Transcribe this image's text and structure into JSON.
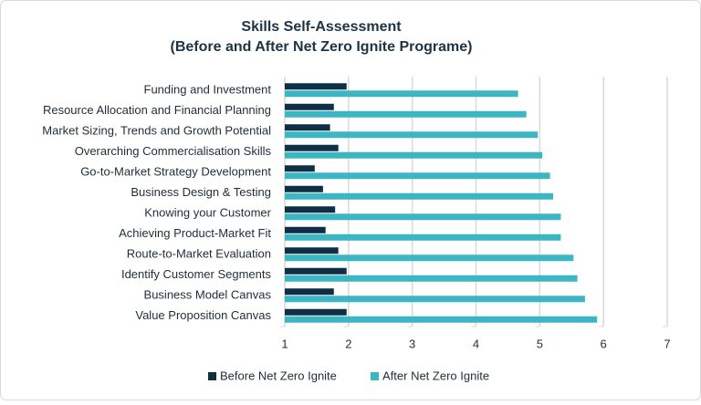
{
  "chart_data": {
    "type": "hbar",
    "title": [
      "Skills Self-Assessment",
      "(Before and After Net Zero Ignite Programe)"
    ],
    "categories": [
      "Funding and Investment",
      "Resource Allocation and Financial Planning",
      "Market Sizing, Trends and Growth Potential",
      "Overarching Commercialisation Skills",
      "Go-to-Market Strategy Development",
      "Business Design & Testing",
      "Knowing your Customer",
      "Achieving Product-Market Fit",
      "Route-to-Market Evaluation",
      "Identify Customer Segments",
      "Business Model Canvas",
      "Value Proposition Canvas"
    ],
    "series": [
      {
        "name": "Before Net Zero Ignite",
        "color": "#0f2f44",
        "values": [
          1.97,
          1.77,
          1.71,
          1.84,
          1.47,
          1.6,
          1.79,
          1.64,
          1.84,
          1.97,
          1.77,
          1.97
        ]
      },
      {
        "name": "After Net Zero Ignite",
        "color": "#3cb6c2",
        "values": [
          4.66,
          4.79,
          4.97,
          5.04,
          5.16,
          5.21,
          5.33,
          5.33,
          5.53,
          5.59,
          5.71,
          5.9
        ]
      }
    ],
    "xlim": [
      1,
      7
    ],
    "xticks": [
      1,
      2,
      3,
      4,
      5,
      6,
      7
    ],
    "grid": true
  }
}
